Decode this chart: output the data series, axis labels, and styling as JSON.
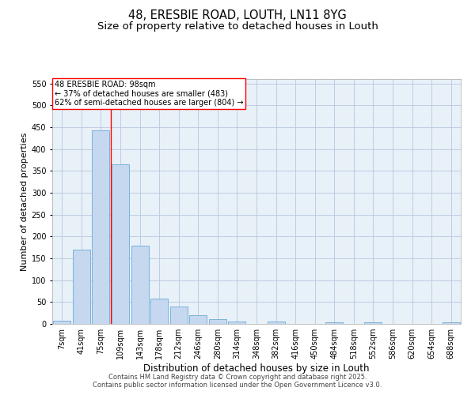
{
  "title": "48, ERESBIE ROAD, LOUTH, LN11 8YG",
  "subtitle": "Size of property relative to detached houses in Louth",
  "xlabel": "Distribution of detached houses by size in Louth",
  "ylabel": "Number of detached properties",
  "categories": [
    "7sqm",
    "41sqm",
    "75sqm",
    "109sqm",
    "143sqm",
    "178sqm",
    "212sqm",
    "246sqm",
    "280sqm",
    "314sqm",
    "348sqm",
    "382sqm",
    "416sqm",
    "450sqm",
    "484sqm",
    "518sqm",
    "552sqm",
    "586sqm",
    "620sqm",
    "654sqm",
    "688sqm"
  ],
  "values": [
    8,
    170,
    443,
    365,
    178,
    57,
    40,
    20,
    10,
    5,
    0,
    5,
    0,
    0,
    3,
    0,
    4,
    0,
    0,
    0,
    4
  ],
  "bar_color": "#c5d8f0",
  "bar_edge_color": "#6aaad4",
  "grid_color": "#b8c8e0",
  "background_color": "#e8f0f8",
  "vline_color": "red",
  "vline_index": 2.5,
  "annotation_text": "48 ERESBIE ROAD: 98sqm\n← 37% of detached houses are smaller (483)\n62% of semi-detached houses are larger (804) →",
  "ylim": [
    0,
    560
  ],
  "yticks": [
    0,
    50,
    100,
    150,
    200,
    250,
    300,
    350,
    400,
    450,
    500,
    550
  ],
  "footer": "Contains HM Land Registry data © Crown copyright and database right 2025.\nContains public sector information licensed under the Open Government Licence v3.0.",
  "title_fontsize": 10.5,
  "subtitle_fontsize": 9.5,
  "tick_fontsize": 7,
  "ylabel_fontsize": 8,
  "xlabel_fontsize": 8.5,
  "annotation_fontsize": 7,
  "footer_fontsize": 6
}
